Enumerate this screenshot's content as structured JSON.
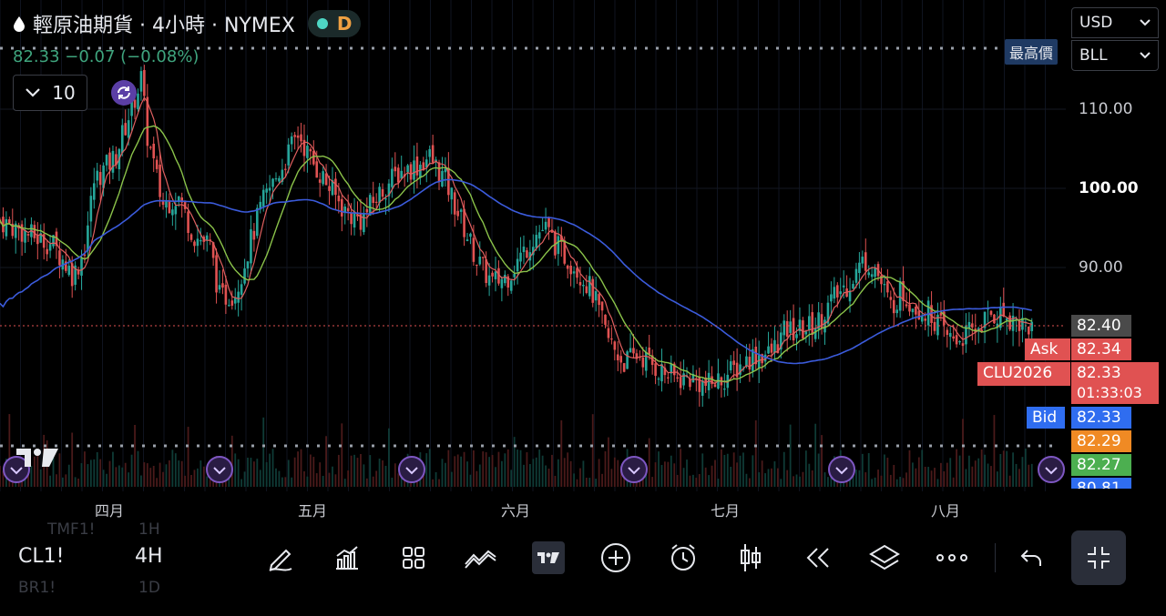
{
  "header": {
    "title": "輕原油期貨 · 4小時 · NYMEX",
    "badge": "D",
    "quote": "82.33  −0.07 (−0.08%)"
  },
  "collapse_button": {
    "label": "10"
  },
  "currency_select": {
    "value": "USD"
  },
  "unit_select": {
    "value": "BLL"
  },
  "high_label": "最高價",
  "price_axis": [
    {
      "label": "110.00",
      "value": 110,
      "bold": false
    },
    {
      "label": "100.00",
      "value": 100,
      "bold": true
    },
    {
      "label": "90.00",
      "value": 90,
      "bold": false
    }
  ],
  "price_tags": {
    "last": {
      "value": "82.40",
      "color": "#4a4a4a"
    },
    "ask": {
      "name": "Ask",
      "value": "82.34",
      "color": "#e05252"
    },
    "symbol": {
      "name": "CLU2026",
      "value": "82.33",
      "countdown": "01:33:03",
      "color": "#e05252"
    },
    "bid": {
      "name": "Bid",
      "value": "82.33",
      "color": "#2f6df0"
    },
    "t1": {
      "value": "82.29",
      "color": "#f08a24"
    },
    "t2": {
      "value": "82.27",
      "color": "#4caf50"
    },
    "t3": {
      "value": "80.81",
      "color": "#2f6df0"
    }
  },
  "time_axis": [
    "四月",
    "五月",
    "六月",
    "七月",
    "八月"
  ],
  "toolbar": {
    "symbol": "CL1!",
    "interval": "4H",
    "icons": [
      "draw-icon",
      "indicators-icon",
      "layout-grid-icon",
      "compare-icon",
      "chart-type-icon",
      "add-icon",
      "alarm-icon",
      "candle-icon",
      "replay-icon",
      "layers-icon",
      "more-icon",
      "undo-icon",
      "exit-fullscreen-icon"
    ]
  },
  "ghost_text": [
    "TMF1!",
    "1H",
    "BR1!",
    "1D"
  ],
  "chart_data": {
    "type": "candlestick",
    "title": "輕原油期貨 · 4小時 · NYMEX",
    "ylim": [
      74,
      118
    ],
    "x_labels": [
      "四月",
      "五月",
      "六月",
      "七月",
      "八月"
    ],
    "close_path": [
      [
        0.0,
        96
      ],
      [
        0.03,
        94
      ],
      [
        0.05,
        93
      ],
      [
        0.07,
        89
      ],
      [
        0.08,
        92
      ],
      [
        0.09,
        101
      ],
      [
        0.11,
        104
      ],
      [
        0.125,
        110
      ],
      [
        0.135,
        114
      ],
      [
        0.14,
        107
      ],
      [
        0.155,
        98
      ],
      [
        0.17,
        99
      ],
      [
        0.185,
        94
      ],
      [
        0.2,
        93
      ],
      [
        0.21,
        86
      ],
      [
        0.225,
        87
      ],
      [
        0.25,
        98
      ],
      [
        0.27,
        103
      ],
      [
        0.285,
        107
      ],
      [
        0.295,
        104
      ],
      [
        0.31,
        101
      ],
      [
        0.33,
        97
      ],
      [
        0.345,
        96
      ],
      [
        0.36,
        99
      ],
      [
        0.38,
        102
      ],
      [
        0.4,
        103
      ],
      [
        0.41,
        104
      ],
      [
        0.425,
        101
      ],
      [
        0.44,
        96
      ],
      [
        0.455,
        91
      ],
      [
        0.47,
        88
      ],
      [
        0.485,
        89
      ],
      [
        0.5,
        92
      ],
      [
        0.51,
        94
      ],
      [
        0.52,
        95
      ],
      [
        0.535,
        92
      ],
      [
        0.55,
        90
      ],
      [
        0.565,
        87
      ],
      [
        0.58,
        81
      ],
      [
        0.595,
        78
      ],
      [
        0.61,
        79
      ],
      [
        0.63,
        77
      ],
      [
        0.645,
        76
      ],
      [
        0.66,
        76
      ],
      [
        0.675,
        75
      ],
      [
        0.69,
        76
      ],
      [
        0.7,
        77
      ],
      [
        0.72,
        79
      ],
      [
        0.735,
        79
      ],
      [
        0.75,
        82
      ],
      [
        0.765,
        82
      ],
      [
        0.78,
        83
      ],
      [
        0.795,
        86
      ],
      [
        0.81,
        88
      ],
      [
        0.825,
        91
      ],
      [
        0.835,
        90
      ],
      [
        0.85,
        85
      ],
      [
        0.86,
        87
      ],
      [
        0.875,
        85
      ],
      [
        0.89,
        84
      ],
      [
        0.905,
        81
      ],
      [
        0.915,
        81
      ],
      [
        0.93,
        82
      ],
      [
        0.945,
        84
      ],
      [
        0.96,
        84
      ],
      [
        0.975,
        83
      ],
      [
        0.985,
        82.4
      ]
    ],
    "series": [
      {
        "name": "",
        "color": "#e05252"
      },
      {
        "name": "",
        "color": "#26a69a"
      },
      {
        "name": "",
        "color": "#3b5bdb"
      },
      {
        "name": "",
        "color": "#8bc34a"
      }
    ]
  }
}
